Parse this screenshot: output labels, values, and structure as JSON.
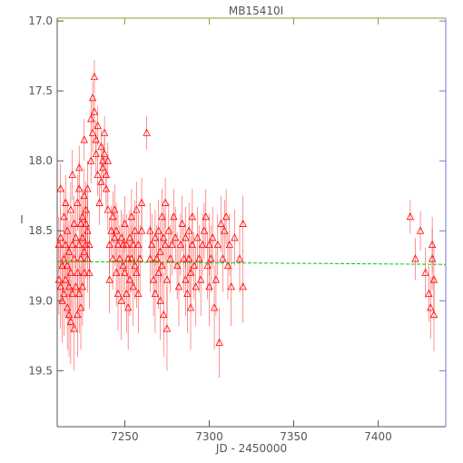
{
  "chart_data": {
    "type": "scatter",
    "title": "MB15410I",
    "xlabel": "JD - 2450000",
    "ylabel": "I",
    "xlim": [
      7210,
      7440
    ],
    "ylim": [
      19.9,
      16.98
    ],
    "y_inverted": true,
    "grid": false,
    "x_ticks": [
      7250,
      7300,
      7350,
      7400
    ],
    "x_tick_labels": [
      "7250",
      "7300",
      "7350",
      "7400"
    ],
    "y_ticks": [
      17.0,
      17.5,
      18.0,
      18.5,
      19.0,
      19.5
    ],
    "y_tick_labels": [
      "17.0",
      "17.5",
      "18.0",
      "18.5",
      "19.0",
      "19.5"
    ],
    "colors": {
      "points": "#ff0000",
      "fit": "#00cc00",
      "axis": "#555555",
      "right_axis": "#7777cc",
      "top_axis": "#999933"
    },
    "fit_line": {
      "x": [
        7210,
        7440
      ],
      "y": [
        18.72,
        18.74
      ]
    },
    "series": [
      {
        "marker": "triangle",
        "points": [
          [
            7211,
            18.6,
            0.2
          ],
          [
            7211,
            18.85,
            0.25
          ],
          [
            7212,
            18.9,
            0.3
          ],
          [
            7212,
            18.55,
            0.2
          ],
          [
            7213,
            18.75,
            0.22
          ],
          [
            7213,
            19.0,
            0.3
          ],
          [
            7214,
            18.4,
            0.2
          ],
          [
            7214,
            18.7,
            0.25
          ],
          [
            7214,
            18.95,
            0.3
          ],
          [
            7215,
            18.3,
            0.2
          ],
          [
            7215,
            18.6,
            0.22
          ],
          [
            7215,
            18.85,
            0.28
          ],
          [
            7216,
            19.05,
            0.3
          ],
          [
            7216,
            18.5,
            0.2
          ],
          [
            7216,
            18.75,
            0.25
          ],
          [
            7217,
            18.9,
            0.28
          ],
          [
            7217,
            18.65,
            0.22
          ],
          [
            7217,
            19.1,
            0.3
          ],
          [
            7218,
            18.35,
            0.2
          ],
          [
            7218,
            18.8,
            0.25
          ],
          [
            7218,
            19.15,
            0.3
          ],
          [
            7219,
            18.6,
            0.22
          ],
          [
            7219,
            18.95,
            0.28
          ],
          [
            7220,
            18.45,
            0.2
          ],
          [
            7220,
            18.7,
            0.24
          ],
          [
            7220,
            19.2,
            0.3
          ],
          [
            7221,
            18.9,
            0.3
          ],
          [
            7221,
            18.55,
            0.22
          ],
          [
            7222,
            18.3,
            0.2
          ],
          [
            7222,
            18.8,
            0.25
          ],
          [
            7222,
            19.1,
            0.3
          ],
          [
            7223,
            18.2,
            0.2
          ],
          [
            7223,
            18.6,
            0.22
          ],
          [
            7223,
            18.95,
            0.28
          ],
          [
            7224,
            18.45,
            0.2
          ],
          [
            7224,
            18.7,
            0.24
          ],
          [
            7224,
            19.05,
            0.3
          ],
          [
            7225,
            18.4,
            0.2
          ],
          [
            7225,
            18.55,
            0.22
          ],
          [
            7225,
            18.9,
            0.28
          ],
          [
            7226,
            18.25,
            0.2
          ],
          [
            7226,
            18.65,
            0.24
          ],
          [
            7226,
            18.8,
            0.26
          ],
          [
            7227,
            18.45,
            0.22
          ],
          [
            7227,
            18.6,
            0.24
          ],
          [
            7227,
            18.35,
            0.2
          ],
          [
            7228,
            18.5,
            0.22
          ],
          [
            7228,
            18.7,
            0.24
          ],
          [
            7228,
            18.2,
            0.2
          ],
          [
            7229,
            18.6,
            0.24
          ],
          [
            7229,
            18.8,
            0.26
          ],
          [
            7212,
            18.2,
            0.18
          ],
          [
            7219,
            18.1,
            0.18
          ],
          [
            7223,
            18.05,
            0.16
          ],
          [
            7226,
            17.85,
            0.15
          ],
          [
            7230,
            18.0,
            0.16
          ],
          [
            7230,
            17.7,
            0.14
          ],
          [
            7231,
            17.55,
            0.12
          ],
          [
            7231,
            17.8,
            0.14
          ],
          [
            7232,
            17.4,
            0.12
          ],
          [
            7232,
            17.65,
            0.12
          ],
          [
            7233,
            17.85,
            0.14
          ],
          [
            7233,
            17.95,
            0.14
          ],
          [
            7234,
            18.1,
            0.15
          ],
          [
            7234,
            17.75,
            0.14
          ],
          [
            7235,
            18.3,
            0.16
          ],
          [
            7236,
            18.15,
            0.14
          ],
          [
            7236,
            17.9,
            0.12
          ],
          [
            7237,
            18.0,
            0.12
          ],
          [
            7237,
            18.05,
            0.12
          ],
          [
            7238,
            17.95,
            0.12
          ],
          [
            7238,
            17.8,
            0.12
          ],
          [
            7239,
            18.1,
            0.13
          ],
          [
            7239,
            18.2,
            0.14
          ],
          [
            7240,
            18.0,
            0.13
          ],
          [
            7240,
            18.35,
            0.15
          ],
          [
            7241,
            18.6,
            0.2
          ],
          [
            7241,
            18.85,
            0.24
          ],
          [
            7242,
            18.5,
            0.18
          ],
          [
            7243,
            18.4,
            0.18
          ],
          [
            7243,
            18.7,
            0.22
          ],
          [
            7244,
            18.55,
            0.2
          ],
          [
            7244,
            18.35,
            0.18
          ],
          [
            7245,
            18.5,
            0.2
          ],
          [
            7245,
            18.8,
            0.24
          ],
          [
            7246,
            18.6,
            0.22
          ],
          [
            7246,
            18.95,
            0.26
          ],
          [
            7247,
            18.7,
            0.24
          ],
          [
            7248,
            18.55,
            0.2
          ],
          [
            7248,
            19.0,
            0.28
          ],
          [
            7249,
            18.75,
            0.24
          ],
          [
            7249,
            18.6,
            0.22
          ],
          [
            7250,
            18.8,
            0.25
          ],
          [
            7250,
            18.45,
            0.2
          ],
          [
            7251,
            18.6,
            0.22
          ],
          [
            7251,
            18.95,
            0.28
          ],
          [
            7252,
            18.7,
            0.24
          ],
          [
            7252,
            19.05,
            0.3
          ],
          [
            7253,
            18.55,
            0.2
          ],
          [
            7253,
            18.85,
            0.26
          ],
          [
            7254,
            18.4,
            0.2
          ],
          [
            7254,
            18.7,
            0.24
          ],
          [
            7255,
            18.6,
            0.22
          ],
          [
            7255,
            18.9,
            0.28
          ],
          [
            7256,
            18.5,
            0.22
          ],
          [
            7256,
            18.75,
            0.24
          ],
          [
            7257,
            18.35,
            0.2
          ],
          [
            7257,
            18.8,
            0.25
          ],
          [
            7258,
            18.6,
            0.22
          ],
          [
            7258,
            18.95,
            0.28
          ],
          [
            7259,
            18.7,
            0.24
          ],
          [
            7260,
            18.5,
            0.2
          ],
          [
            7260,
            18.3,
            0.18
          ],
          [
            7263,
            17.8,
            0.12
          ],
          [
            7265,
            18.5,
            0.2
          ],
          [
            7265,
            18.7,
            0.24
          ],
          [
            7266,
            18.6,
            0.22
          ],
          [
            7267,
            18.85,
            0.26
          ],
          [
            7268,
            18.55,
            0.2
          ],
          [
            7268,
            18.95,
            0.28
          ],
          [
            7269,
            18.7,
            0.24
          ],
          [
            7270,
            18.5,
            0.22
          ],
          [
            7270,
            18.8,
            0.26
          ],
          [
            7271,
            18.65,
            0.22
          ],
          [
            7271,
            19.0,
            0.28
          ],
          [
            7272,
            18.4,
            0.2
          ],
          [
            7272,
            18.75,
            0.24
          ],
          [
            7273,
            18.55,
            0.22
          ],
          [
            7273,
            19.1,
            0.3
          ],
          [
            7274,
            18.3,
            0.18
          ],
          [
            7274,
            18.6,
            0.22
          ],
          [
            7275,
            18.85,
            0.26
          ],
          [
            7275,
            19.2,
            0.3
          ],
          [
            7276,
            18.5,
            0.2
          ],
          [
            7277,
            18.7,
            0.24
          ],
          [
            7278,
            18.6,
            0.22
          ],
          [
            7279,
            18.4,
            0.2
          ],
          [
            7280,
            18.55,
            0.22
          ],
          [
            7281,
            18.75,
            0.24
          ],
          [
            7282,
            18.9,
            0.28
          ],
          [
            7283,
            18.6,
            0.22
          ],
          [
            7284,
            18.45,
            0.2
          ],
          [
            7285,
            18.7,
            0.24
          ],
          [
            7286,
            18.55,
            0.22
          ],
          [
            7286,
            18.85,
            0.26
          ],
          [
            7287,
            18.95,
            0.28
          ],
          [
            7288,
            18.7,
            0.24
          ],
          [
            7288,
            18.5,
            0.2
          ],
          [
            7289,
            18.8,
            0.26
          ],
          [
            7289,
            19.05,
            0.3
          ],
          [
            7290,
            18.6,
            0.22
          ],
          [
            7290,
            18.4,
            0.2
          ],
          [
            7291,
            18.75,
            0.24
          ],
          [
            7292,
            18.9,
            0.28
          ],
          [
            7293,
            18.55,
            0.22
          ],
          [
            7294,
            18.7,
            0.24
          ],
          [
            7295,
            18.85,
            0.26
          ],
          [
            7296,
            18.6,
            0.22
          ],
          [
            7297,
            18.5,
            0.2
          ],
          [
            7298,
            18.4,
            0.2
          ],
          [
            7299,
            18.75,
            0.24
          ],
          [
            7300,
            18.6,
            0.22
          ],
          [
            7300,
            18.9,
            0.28
          ],
          [
            7301,
            18.7,
            0.24
          ],
          [
            7302,
            18.55,
            0.22
          ],
          [
            7303,
            19.05,
            0.3
          ],
          [
            7304,
            18.85,
            0.26
          ],
          [
            7305,
            18.6,
            0.22
          ],
          [
            7306,
            19.3,
            0.25
          ],
          [
            7307,
            18.45,
            0.2
          ],
          [
            7308,
            18.7,
            0.24
          ],
          [
            7309,
            18.5,
            0.22
          ],
          [
            7310,
            18.4,
            0.2
          ],
          [
            7311,
            18.75,
            0.24
          ],
          [
            7312,
            18.6,
            0.22
          ],
          [
            7313,
            18.9,
            0.28
          ],
          [
            7315,
            18.55,
            0.2
          ],
          [
            7318,
            18.7,
            0.24
          ],
          [
            7320,
            18.45,
            0.2
          ],
          [
            7320,
            18.9,
            0.26
          ],
          [
            7419,
            18.4,
            0.12
          ],
          [
            7422,
            18.7,
            0.15
          ],
          [
            7425,
            18.5,
            0.14
          ],
          [
            7428,
            18.8,
            0.18
          ],
          [
            7430,
            18.95,
            0.2
          ],
          [
            7431,
            19.05,
            0.22
          ],
          [
            7432,
            18.6,
            0.2
          ],
          [
            7432,
            18.7,
            0.22
          ],
          [
            7433,
            18.85,
            0.24
          ],
          [
            7433,
            19.1,
            0.26
          ]
        ]
      }
    ]
  }
}
